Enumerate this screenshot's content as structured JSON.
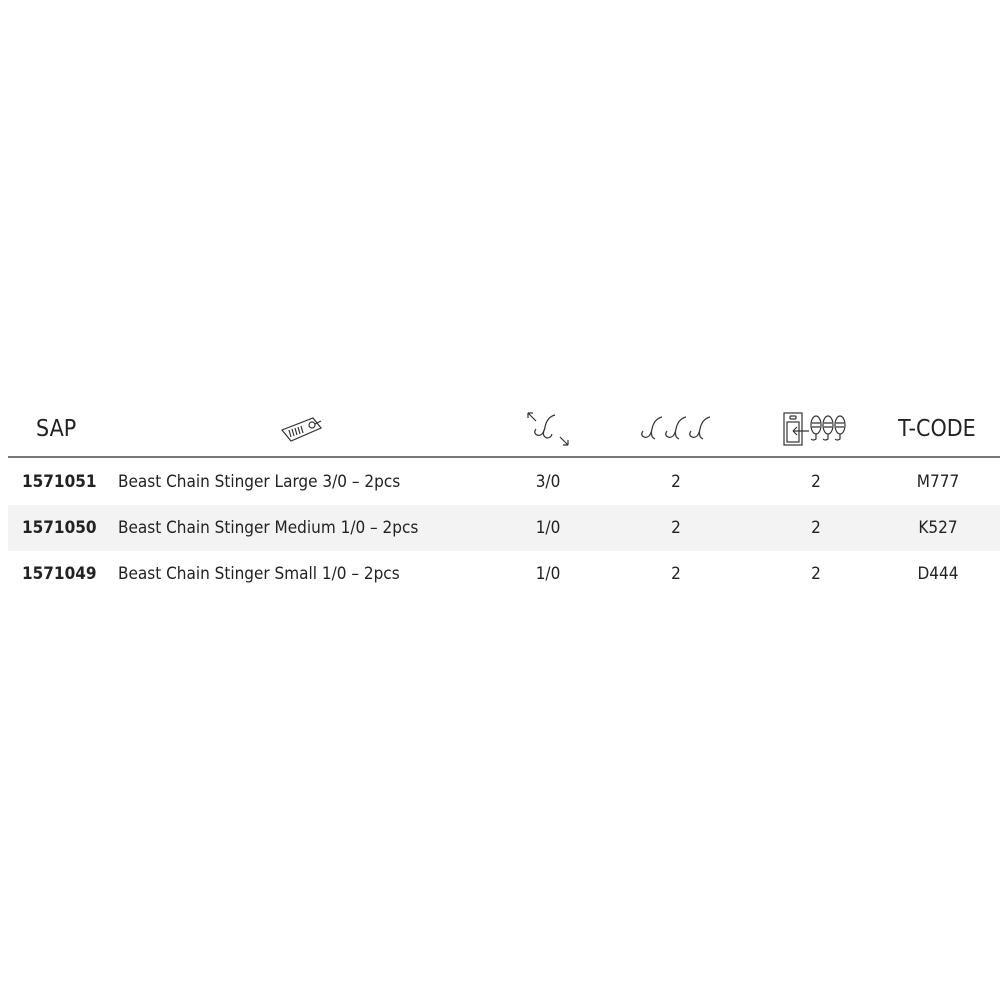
{
  "header": {
    "sap": "SAP",
    "tcode": "T-CODE",
    "icons": [
      "price-tag-icon",
      "hook-size-icon",
      "hooks-per-pack-icon",
      "package-quantity-icon"
    ]
  },
  "rows": [
    {
      "sap": "1571051",
      "description": "Beast Chain Stinger Large 3/0 – 2pcs",
      "size": "3/0",
      "hooks": "2",
      "pack": "2",
      "tcode": "M777"
    },
    {
      "sap": "1571050",
      "description": "Beast Chain Stinger Medium 1/0 – 2pcs",
      "size": "1/0",
      "hooks": "2",
      "pack": "2",
      "tcode": "K527"
    },
    {
      "sap": "1571049",
      "description": "Beast Chain Stinger Small 1/0 – 2pcs",
      "size": "1/0",
      "hooks": "2",
      "pack": "2",
      "tcode": "D444"
    }
  ]
}
